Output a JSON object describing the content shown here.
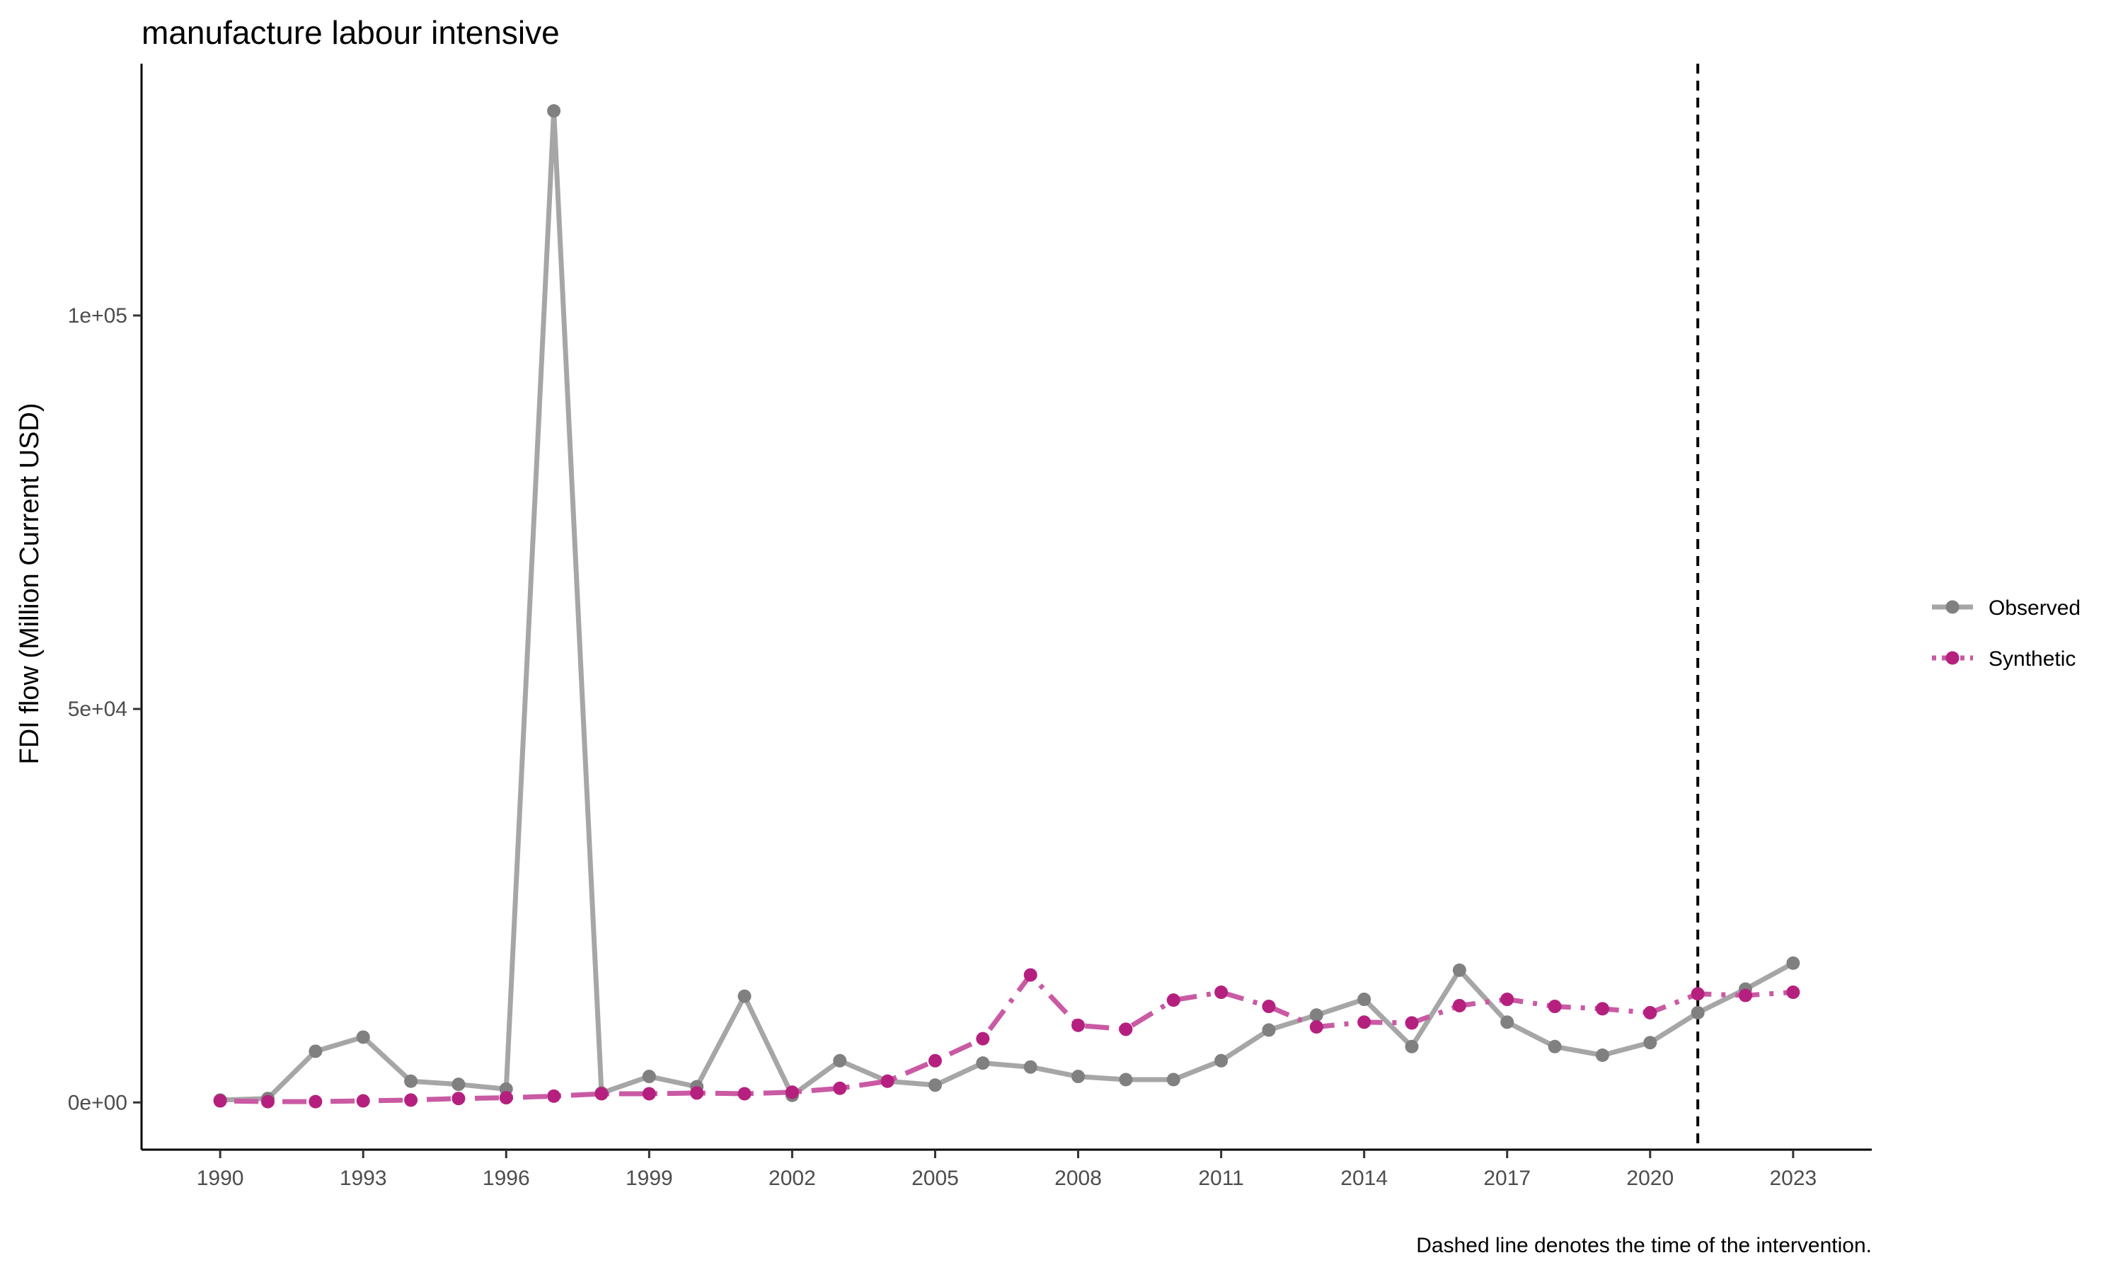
{
  "chart_data": {
    "type": "line",
    "title": "manufacture labour intensive",
    "xlabel": "",
    "ylabel": "FDI flow (Million Current USD)",
    "caption": "Dashed line denotes the time of the intervention.",
    "x": [
      1990,
      1991,
      1992,
      1993,
      1994,
      1995,
      1996,
      1997,
      1998,
      1999,
      2000,
      2001,
      2002,
      2003,
      2004,
      2005,
      2006,
      2007,
      2008,
      2009,
      2010,
      2011,
      2012,
      2013,
      2014,
      2015,
      2016,
      2017,
      2018,
      2019,
      2020,
      2021,
      2022,
      2023
    ],
    "x_ticks": [
      1990,
      1993,
      1996,
      1999,
      2002,
      2005,
      2008,
      2011,
      2014,
      2017,
      2020,
      2023
    ],
    "x_tick_labels": [
      "1990",
      "1993",
      "1996",
      "1999",
      "2002",
      "2005",
      "2008",
      "2011",
      "2014",
      "2017",
      "2020",
      "2023"
    ],
    "xlim": [
      1988.35,
      2024.65
    ],
    "y_ticks": [
      0,
      50000,
      100000
    ],
    "y_tick_labels": [
      "0e+00",
      "5e+04",
      "1e+05"
    ],
    "ylim": [
      -6000,
      132000
    ],
    "intervention_x": 2021,
    "grid": false,
    "legend_position": "right",
    "series": [
      {
        "name": "Observed",
        "color": "#808080",
        "line_color": "#a6a6a6",
        "line_style": "solid",
        "values": [
          300,
          500,
          6500,
          8300,
          2700,
          2300,
          1700,
          126000,
          1200,
          3300,
          2000,
          13500,
          900,
          5300,
          2700,
          2200,
          5000,
          4500,
          3300,
          2900,
          2900,
          5300,
          9200,
          11100,
          13100,
          7100,
          16800,
          10200,
          7100,
          6000,
          7600,
          11400,
          14400,
          17700
        ]
      },
      {
        "name": "Synthetic",
        "color": "#b5207f",
        "line_color": "#c95aa3",
        "line_style": "dotdash",
        "values": [
          200,
          100,
          100,
          200,
          300,
          500,
          600,
          800,
          1100,
          1100,
          1200,
          1100,
          1300,
          1800,
          2700,
          5300,
          8100,
          16200,
          9800,
          9300,
          13000,
          14000,
          12200,
          9600,
          10200,
          10100,
          12300,
          13100,
          12200,
          11900,
          11400,
          13800,
          13600,
          14000
        ]
      }
    ]
  }
}
